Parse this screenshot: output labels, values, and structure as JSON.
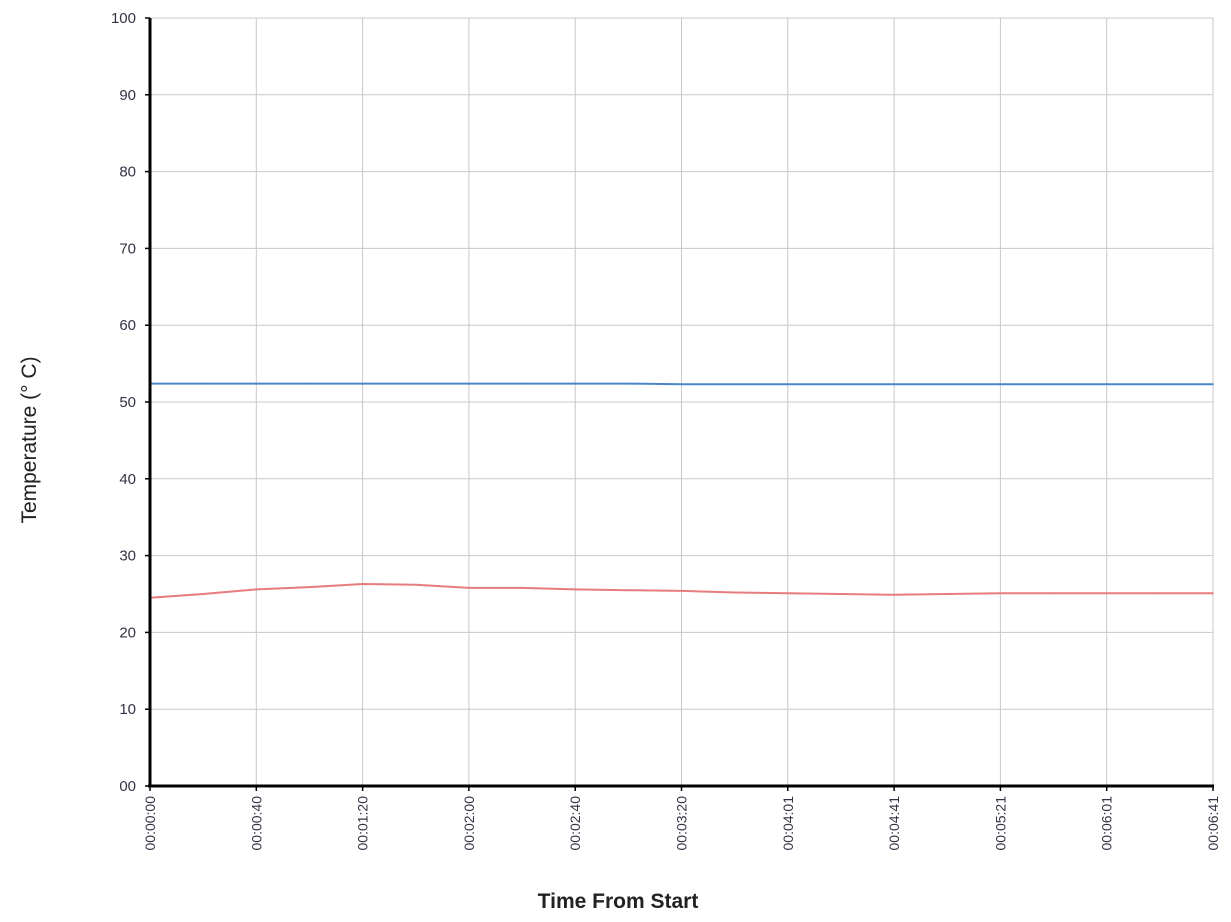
{
  "chart_data": {
    "type": "line",
    "title": "",
    "xlabel": "Time From Start",
    "ylabel": "Temperature (° C)",
    "ylim": [
      0,
      100
    ],
    "grid": true,
    "legend": "none",
    "x_tick_labels": [
      "00:00:00",
      "00:00:40",
      "00:01:20",
      "00:02:00",
      "00:02:40",
      "00:03:20",
      "00:04:01",
      "00:04:41",
      "00:05:21",
      "00:06:01",
      "00:06:41"
    ],
    "y_tick_labels": [
      "00",
      "10",
      "20",
      "30",
      "40",
      "50",
      "60",
      "70",
      "80",
      "90",
      "100"
    ],
    "y_ticks": [
      0,
      10,
      20,
      30,
      40,
      50,
      60,
      70,
      80,
      90,
      100
    ],
    "x": [
      "00:00:00",
      "00:00:20",
      "00:00:40",
      "00:01:00",
      "00:01:20",
      "00:01:40",
      "00:02:00",
      "00:02:20",
      "00:02:40",
      "00:03:00",
      "00:03:20",
      "00:03:40",
      "00:04:01",
      "00:04:21",
      "00:04:41",
      "00:05:01",
      "00:05:21",
      "00:05:41",
      "00:06:01",
      "00:06:21",
      "00:06:41"
    ],
    "series": [
      {
        "color": "#4a86c8",
        "values": [
          52.4,
          52.4,
          52.4,
          52.4,
          52.4,
          52.4,
          52.4,
          52.4,
          52.4,
          52.4,
          52.3,
          52.3,
          52.3,
          52.3,
          52.3,
          52.3,
          52.3,
          52.3,
          52.3,
          52.3,
          52.3
        ]
      },
      {
        "color": "#e87c7c",
        "values": [
          24.5,
          25.0,
          25.6,
          25.9,
          26.3,
          26.2,
          25.8,
          25.8,
          25.6,
          25.5,
          25.4,
          25.2,
          25.1,
          25.0,
          24.9,
          25.0,
          25.1,
          25.1,
          25.1,
          25.1,
          25.1
        ]
      }
    ],
    "colors": {
      "grid": "#c8c8c8",
      "axis": "#000000",
      "y_top_tick": "#7a2a5a"
    }
  }
}
